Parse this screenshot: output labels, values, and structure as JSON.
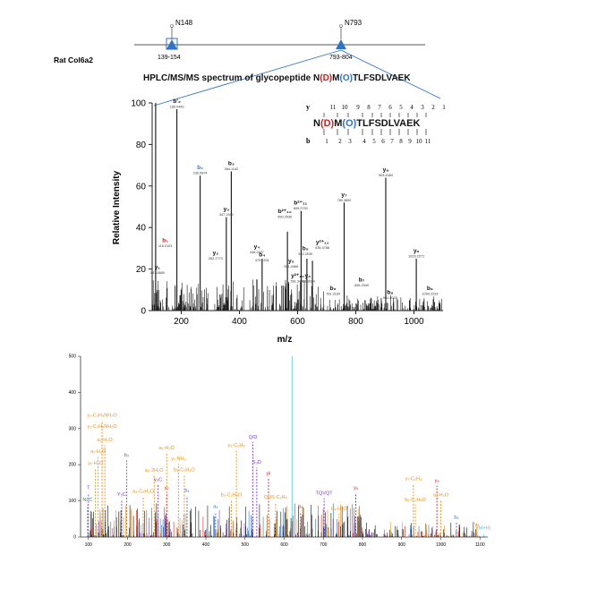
{
  "header": {
    "protein": "Rat Col6a2",
    "site1": {
      "name": "N148",
      "range": "139-154"
    },
    "site2": {
      "name": "N793",
      "range": "793-804"
    }
  },
  "colors": {
    "blue": "#2f73c5",
    "red": "#d62020",
    "black": "#111111",
    "orange": "#e8931e",
    "violet": "#7a3fc9",
    "green": "#2a9a3a",
    "cyan": "#4fc7d8"
  },
  "chart_data": [
    {
      "type": "bar",
      "title": "HPLC/MS/MS spectrum of glycopeptide N(D)M(O)TLFSDLVAEK",
      "title_parts": [
        {
          "t": "HPLC/MS/MS spectrum of glycopeptide N",
          "c": "black"
        },
        {
          "t": "(D)",
          "c": "red"
        },
        {
          "t": "M",
          "c": "black"
        },
        {
          "t": "(O)",
          "c": "blue"
        },
        {
          "t": "TLFSDLVAEK",
          "c": "black"
        }
      ],
      "xlabel": "m/z",
      "ylabel": "Relative Intensity",
      "xlim": [
        100,
        1100
      ],
      "ylim": [
        0,
        100
      ],
      "xticks": [
        200,
        400,
        600,
        800,
        1000
      ],
      "yticks": [
        0,
        20,
        40,
        60,
        80,
        100
      ],
      "peaks": [
        {
          "x": 112,
          "y": 100
        },
        {
          "x": 185,
          "y": 97
        },
        {
          "x": 265,
          "y": 65
        },
        {
          "x": 355,
          "y": 45
        },
        {
          "x": 372,
          "y": 67
        },
        {
          "x": 460,
          "y": 15
        },
        {
          "x": 478,
          "y": 25
        },
        {
          "x": 550,
          "y": 12
        },
        {
          "x": 565,
          "y": 38
        },
        {
          "x": 612,
          "y": 48
        },
        {
          "x": 632,
          "y": 25
        },
        {
          "x": 651,
          "y": 24
        },
        {
          "x": 760,
          "y": 52
        },
        {
          "x": 832,
          "y": 5
        },
        {
          "x": 903,
          "y": 64
        },
        {
          "x": 1008,
          "y": 25
        },
        {
          "x": 985,
          "y": 5
        },
        {
          "x": 1070,
          "y": 4
        }
      ],
      "peak_labels": [
        {
          "x": 185,
          "y": 97,
          "ion": "b'₂",
          "mz": "183.0443",
          "c": "black"
        },
        {
          "x": 145,
          "y": 30,
          "ion": "b₁",
          "mz": "116.0103",
          "c": "red"
        },
        {
          "x": 118,
          "y": 17,
          "ion": "y₁",
          "mz": "147.0889",
          "c": "black"
        },
        {
          "x": 265,
          "y": 65,
          "ion": "b₂",
          "mz": "230.0874",
          "c": "blue"
        },
        {
          "x": 318,
          "y": 24,
          "ion": "y₂",
          "mz": "262.1773",
          "c": "black"
        },
        {
          "x": 355,
          "y": 45,
          "ion": "y₃",
          "mz": "347.1940",
          "c": "black"
        },
        {
          "x": 372,
          "y": 67,
          "ion": "b₃",
          "mz": "364.1142",
          "c": "black"
        },
        {
          "x": 460,
          "y": 27,
          "ion": "y₄",
          "mz": "446.2327",
          "c": "black"
        },
        {
          "x": 478,
          "y": 23,
          "ion": "b₄",
          "mz": "475.1331",
          "c": "black"
        },
        {
          "x": 556,
          "y": 44,
          "ion": "b²⁺₁₀",
          "mz": "550.2536",
          "c": "black"
        },
        {
          "x": 610,
          "y": 48,
          "ion": "b²⁺₁₁",
          "mz": "609.2753",
          "c": "black"
        },
        {
          "x": 578,
          "y": 20,
          "ion": "y₅",
          "mz": "561.3466",
          "c": "black"
        },
        {
          "x": 627,
          "y": 26,
          "ion": "b₅",
          "mz": "622.2039",
          "c": "black"
        },
        {
          "x": 600,
          "y": 13,
          "ion": "y²⁺₁₀",
          "mz": "591.3430",
          "c": "black"
        },
        {
          "x": 635,
          "y": 13,
          "ion": "y₆",
          "mz": "618.3624",
          "c": "black"
        },
        {
          "x": 685,
          "y": 29,
          "ion": "y²⁺₁₁",
          "mz": "635.4768",
          "c": "black"
        },
        {
          "x": 722,
          "y": 7,
          "ion": "b₆",
          "mz": "781.3169",
          "c": "black"
        },
        {
          "x": 760,
          "y": 52,
          "ion": "y₇",
          "mz": "760.3852",
          "c": "black"
        },
        {
          "x": 820,
          "y": 11,
          "ion": "b₇",
          "mz": "826.2949",
          "c": "black"
        },
        {
          "x": 903,
          "y": 64,
          "ion": "y₈",
          "mz": "903.4384",
          "c": "black"
        },
        {
          "x": 918,
          "y": 5,
          "ion": "b₈",
          "mz": "991.4023",
          "c": "black"
        },
        {
          "x": 1008,
          "y": 25,
          "ion": "y₉",
          "mz": "1023.2271",
          "c": "black"
        },
        {
          "x": 1055,
          "y": 7,
          "ion": "b₉",
          "mz": "1099.2233",
          "c": "black"
        }
      ],
      "sequence": {
        "y_label": "y",
        "b_label": "b",
        "residues": [
          {
            "t": "N",
            "c": "black"
          },
          {
            "t": "(D)",
            "c": "red"
          },
          {
            "t": "M",
            "c": "black"
          },
          {
            "t": "(O)",
            "c": "blue"
          },
          {
            "t": "TLFSDLVAEK",
            "c": "black"
          }
        ],
        "y_numbers": [
          "11",
          "10",
          "9",
          "8",
          "7",
          "6",
          "5",
          "4",
          "3",
          "2",
          "1"
        ],
        "b_numbers": [
          "1",
          "2",
          "3",
          "4",
          "5",
          "6",
          "7",
          "8",
          "9",
          "10",
          "11"
        ]
      }
    },
    {
      "type": "bar",
      "xticks": [
        "100",
        "200",
        "300",
        "400",
        "500",
        "600",
        "700",
        "800",
        "900",
        "1000",
        "1100"
      ],
      "yticks": [
        "0",
        "100",
        "200",
        "300",
        "400",
        "500"
      ],
      "xlim": [
        80,
        1120
      ],
      "ylim": [
        0,
        500
      ],
      "peak_labels": [
        {
          "x": 135,
          "y": 330,
          "t": "y₁-C₂H₄NH₂O",
          "c": "orange"
        },
        {
          "x": 135,
          "y": 300,
          "t": "y₁-C₂H₄NH₂O",
          "c": "orange"
        },
        {
          "x": 142,
          "y": 262,
          "t": "a₁-H₂O",
          "c": "orange"
        },
        {
          "x": 125,
          "y": 230,
          "t": "a₁-H₂O",
          "c": "orange"
        },
        {
          "x": 118,
          "y": 198,
          "t": "y₁-H₂O",
          "c": "orange"
        },
        {
          "x": 198,
          "y": 220,
          "t": "b₂",
          "c": "blue"
        },
        {
          "x": 100,
          "y": 130,
          "t": "T",
          "c": "violet"
        },
        {
          "x": 98,
          "y": 96,
          "t": "NLC",
          "c": "green"
        },
        {
          "x": 185,
          "y": 112,
          "t": "Y₃C",
          "c": "violet"
        },
        {
          "x": 240,
          "y": 120,
          "t": "a₃-C₂H₄O",
          "c": "orange"
        },
        {
          "x": 278,
          "y": 152,
          "t": "y₃C",
          "c": "violet"
        },
        {
          "x": 268,
          "y": 178,
          "t": "a₃-2H₂O",
          "c": "orange"
        },
        {
          "x": 300,
          "y": 240,
          "t": "a₁-H₂O",
          "c": "orange"
        },
        {
          "x": 330,
          "y": 210,
          "t": "y₁-NH₃",
          "c": "orange"
        },
        {
          "x": 345,
          "y": 180,
          "t": "b₃-C₂H₄O",
          "c": "orange"
        },
        {
          "x": 352,
          "y": 122,
          "t": "b₄",
          "c": "blue"
        },
        {
          "x": 300,
          "y": 130,
          "t": "y₂",
          "c": "red"
        },
        {
          "x": 425,
          "y": 78,
          "t": "a₄",
          "c": "blue"
        },
        {
          "x": 465,
          "y": 110,
          "t": "b₃-C₂H₄O",
          "c": "orange"
        },
        {
          "x": 478,
          "y": 248,
          "t": "y₂-C₂H₄",
          "c": "orange"
        },
        {
          "x": 520,
          "y": 270,
          "t": "Q/D",
          "c": "violet"
        },
        {
          "x": 530,
          "y": 200,
          "t": "S₃D",
          "c": "violet"
        },
        {
          "x": 560,
          "y": 170,
          "t": "pi",
          "c": "red"
        },
        {
          "x": 578,
          "y": 104,
          "t": "QHS-C₂H₄",
          "c": "orange"
        },
        {
          "x": 642,
          "y": 78,
          "t": "b₄",
          "c": "red"
        },
        {
          "x": 702,
          "y": 115,
          "t": "TQVQT",
          "c": "violet"
        },
        {
          "x": 740,
          "y": 72,
          "t": "b₅-H₂O",
          "c": "orange"
        },
        {
          "x": 783,
          "y": 130,
          "t": "y₆",
          "c": "red"
        },
        {
          "x": 930,
          "y": 155,
          "t": "y₇-C₂H₄",
          "c": "orange"
        },
        {
          "x": 935,
          "y": 97,
          "t": "b₅-C₂H₄O",
          "c": "orange"
        },
        {
          "x": 990,
          "y": 150,
          "t": "y₈",
          "c": "red"
        },
        {
          "x": 1000,
          "y": 110,
          "t": "a₁-H₂O",
          "c": "orange"
        },
        {
          "x": 1040,
          "y": 48,
          "t": "b₅",
          "c": "blue"
        },
        {
          "x": 1092,
          "y": 28,
          "t": "y₉",
          "c": "orange"
        },
        {
          "x": 1110,
          "y": 18,
          "t": "(M+H)",
          "c": "cyan"
        }
      ]
    }
  ]
}
